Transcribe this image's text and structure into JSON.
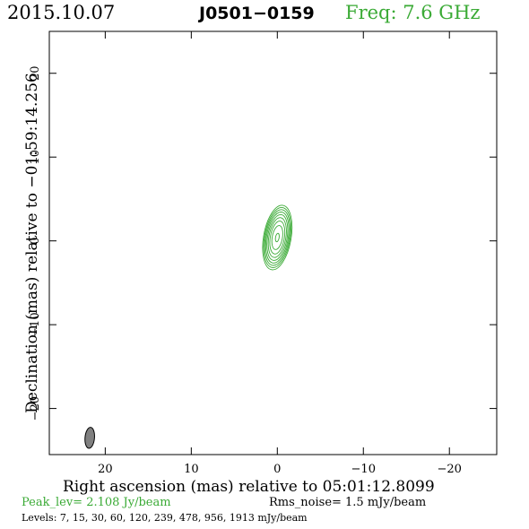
{
  "header": {
    "date": "2015.10.07",
    "source": "J0501−0159",
    "freq": "Freq: 7.6 GHz"
  },
  "footer": {
    "peak": "Peak_lev=  2.108 Jy/beam",
    "rms": "Rms_noise=  1.5 mJy/beam",
    "levels": "Levels:   7,  15,  30,  60, 120, 239, 478, 956, 1913 mJy/beam"
  },
  "colors": {
    "accent_green": "#3aaa35",
    "beam_fill": "#808080",
    "axis": "#000000"
  },
  "chart_data": {
    "type": "contour",
    "title": "J0501−0159",
    "xlabel": "Right ascension (mas) relative to 05:01:12.8099",
    "ylabel": "Declination (mas) relative to −01:59:14.256",
    "xlim": [
      26.5,
      -25.5
    ],
    "ylim": [
      -25.5,
      25
    ],
    "xticks": [
      20,
      10,
      0,
      -10,
      -20
    ],
    "xtick_labels": [
      "20",
      "10",
      "0",
      "−10",
      "−20"
    ],
    "yticks": [
      20,
      10,
      0,
      -10,
      -20
    ],
    "ytick_labels": [
      "20",
      "10",
      "0",
      "−10",
      "−20"
    ],
    "peak_jy_per_beam": 2.108,
    "rms_noise_mjy_per_beam": 1.5,
    "contour_levels_mjy": [
      7,
      15,
      30,
      60,
      120,
      239,
      478,
      956,
      1913
    ],
    "component": {
      "ra": 0.0,
      "dec": 0.4,
      "major_axis_mas": 7.8,
      "minor_axis_mas": 3.2,
      "pa_deg": 10
    },
    "beam": {
      "ra": 21.8,
      "dec": -23.5,
      "major_axis_mas": 2.5,
      "minor_axis_mas": 1.1,
      "pa_deg": 5
    }
  }
}
